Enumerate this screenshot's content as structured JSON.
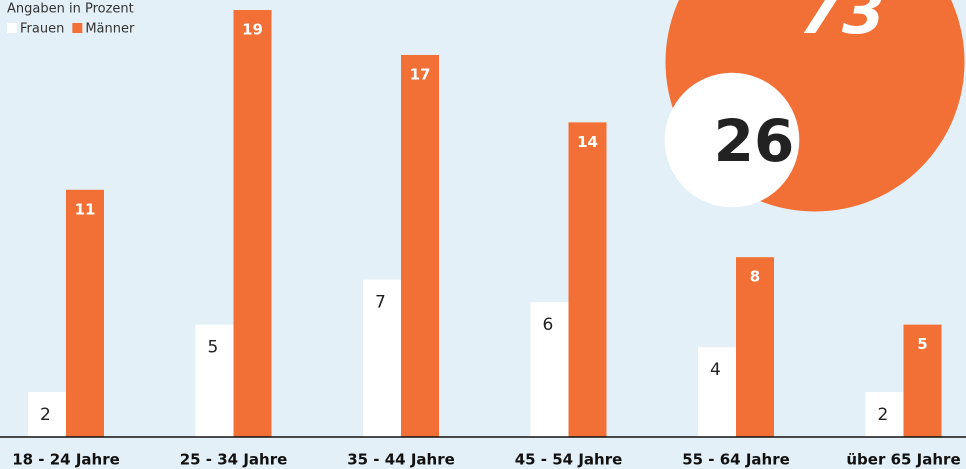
{
  "chart_data": {
    "type": "bar",
    "subtitle": "Angaben in Prozent",
    "categories": [
      "18 - 24 Jahre",
      "25 - 34 Jahre",
      "35 - 44 Jahre",
      "45 - 54 Jahre",
      "55 - 64 Jahre",
      "über 65 Jahre"
    ],
    "series": [
      {
        "name": "Frauen",
        "color": "#ffffff",
        "values": [
          2,
          5,
          7,
          6,
          4,
          2
        ],
        "total": 26
      },
      {
        "name": "Männer",
        "color": "#f26f36",
        "values": [
          11,
          19,
          17,
          14,
          8,
          5
        ],
        "total": 73
      }
    ],
    "ylim": [
      0,
      19
    ]
  }
}
